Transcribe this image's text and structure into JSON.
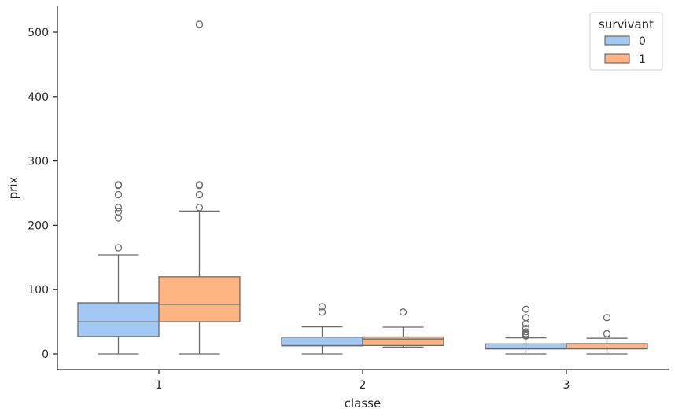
{
  "chart_data": {
    "type": "boxplot",
    "title": "",
    "xlabel": "classe",
    "ylabel": "prix",
    "categories": [
      "1",
      "2",
      "3"
    ],
    "ylim": [
      -25,
      537
    ],
    "yticks": [
      0,
      100,
      200,
      300,
      400,
      500
    ],
    "grid": false,
    "legend": {
      "title": "survivant",
      "placement": "top-right"
    },
    "series": [
      {
        "name": "0",
        "color": "#a1c9f4",
        "boxes": [
          {
            "whislo": 0,
            "q1": 27,
            "med": 50,
            "q3": 79.5,
            "whishi": 154,
            "fliers": [
              165,
              211.5,
              221,
              227.5,
              247.5,
              262,
              263
            ]
          },
          {
            "whislo": 0,
            "q1": 12.5,
            "med": 13,
            "q3": 26,
            "whishi": 42,
            "fliers": [
              65,
              73.5
            ]
          },
          {
            "whislo": 0,
            "q1": 7.75,
            "med": 8.05,
            "q3": 15.5,
            "whishi": 25,
            "fliers": [
              27.9,
              29.1,
              31.3,
              34.4,
              39.7,
              46.9,
              56.5,
              69.55
            ]
          }
        ]
      },
      {
        "name": "1",
        "color": "#ffb482",
        "boxes": [
          {
            "whislo": 0,
            "q1": 50,
            "med": 77,
            "q3": 120,
            "whishi": 222,
            "fliers": [
              227.5,
              247.5,
              262,
              263,
              512.3
            ]
          },
          {
            "whislo": 10.5,
            "q1": 13,
            "med": 23,
            "q3": 26.3,
            "whishi": 41.6,
            "fliers": [
              65
            ]
          },
          {
            "whislo": 0,
            "q1": 7.8,
            "med": 8.5,
            "q3": 15.9,
            "whishi": 24.2,
            "fliers": [
              31.4,
              56.5
            ]
          }
        ]
      }
    ]
  }
}
